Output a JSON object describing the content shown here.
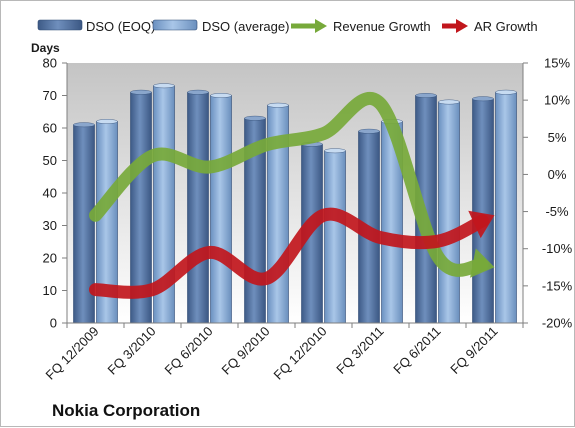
{
  "chart_data": {
    "type": "bar",
    "title": "Nokia Corporation",
    "ylabel": "Days",
    "ylim": [
      0,
      80
    ],
    "y_ticks": [
      "0",
      "10",
      "20",
      "30",
      "40",
      "50",
      "60",
      "70",
      "80"
    ],
    "y2lim": [
      -20,
      15
    ],
    "y2_ticks": [
      "-20%",
      "-15%",
      "-10%",
      "-5%",
      "0%",
      "5%",
      "10%",
      "15%"
    ],
    "categories": [
      "FQ 12/2009",
      "FQ 3/2010",
      "FQ 6/2010",
      "FQ 9/2010",
      "FQ 12/2010",
      "FQ 3/2011",
      "FQ 6/2011",
      "FQ 9/2011"
    ],
    "series": [
      {
        "name": "DSO (EOQ)",
        "kind": "bar",
        "axis": "left",
        "color": "#4a6b9c",
        "values": [
          61,
          71,
          71,
          63,
          55,
          59,
          70,
          69
        ]
      },
      {
        "name": "DSO (average)",
        "kind": "bar",
        "axis": "left",
        "color": "#7fa3cf",
        "values": [
          62,
          73,
          70,
          67,
          53,
          62,
          68,
          71
        ]
      },
      {
        "name": "Revenue Growth",
        "kind": "line",
        "axis": "right",
        "color": "#77a93a",
        "values": [
          -5.5,
          2.5,
          1.0,
          4.0,
          5.5,
          9.5,
          -11.0,
          -12.5
        ]
      },
      {
        "name": "AR Growth",
        "kind": "line",
        "axis": "right",
        "color": "#c1161c",
        "values": [
          -15.5,
          -15.5,
          -10.5,
          -14.0,
          -5.5,
          -8.5,
          -9.0,
          -5.5
        ]
      }
    ],
    "grid": false,
    "legend_position": "top"
  }
}
